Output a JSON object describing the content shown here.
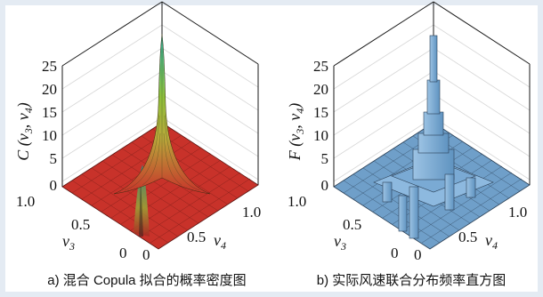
{
  "colors": {
    "background": "#e4ebf3",
    "panel": "#ffffff",
    "density_low": "#c8322a",
    "density_mid": "#8fbf3a",
    "density_high": "#2fb3a0",
    "histogram": "#7fb0d8"
  },
  "chart_data": [
    {
      "type": "surface3d",
      "caption": "a) 混合 Copula 拟合的概率密度图",
      "zlabel": "C (v3, v4)",
      "xlabel": "v3",
      "ylabel": "v4",
      "xlim": [
        0,
        1
      ],
      "ylim": [
        0,
        1
      ],
      "zlim": [
        0,
        25
      ],
      "zticks": [
        "25",
        "20",
        "15",
        "10",
        "5",
        "0"
      ],
      "xticks": [
        "1.0",
        "0.5",
        "0"
      ],
      "yticks": [
        "0",
        "0.5",
        "1.0"
      ],
      "peak": {
        "v3": 1.0,
        "v4": 1.0,
        "value": 26
      },
      "secondary_ridge": {
        "v3": 0.5,
        "v4": 0.55,
        "value": 4
      }
    },
    {
      "type": "histogram3d",
      "caption": "b) 实际风速联合分布频率直方图",
      "zlabel": "F (v3, v4)",
      "xlabel": "v3",
      "ylabel": "v4",
      "xlim": [
        0,
        1
      ],
      "ylim": [
        0,
        1
      ],
      "zlim": [
        0,
        25
      ],
      "zticks": [
        "25",
        "20",
        "15",
        "10",
        "5",
        "0"
      ],
      "xticks": [
        "1.0",
        "0.5",
        "0"
      ],
      "yticks": [
        "0",
        "0.5",
        "1.0"
      ],
      "peak": {
        "v3": 1.0,
        "v4": 1.0,
        "value": 26
      }
    }
  ]
}
